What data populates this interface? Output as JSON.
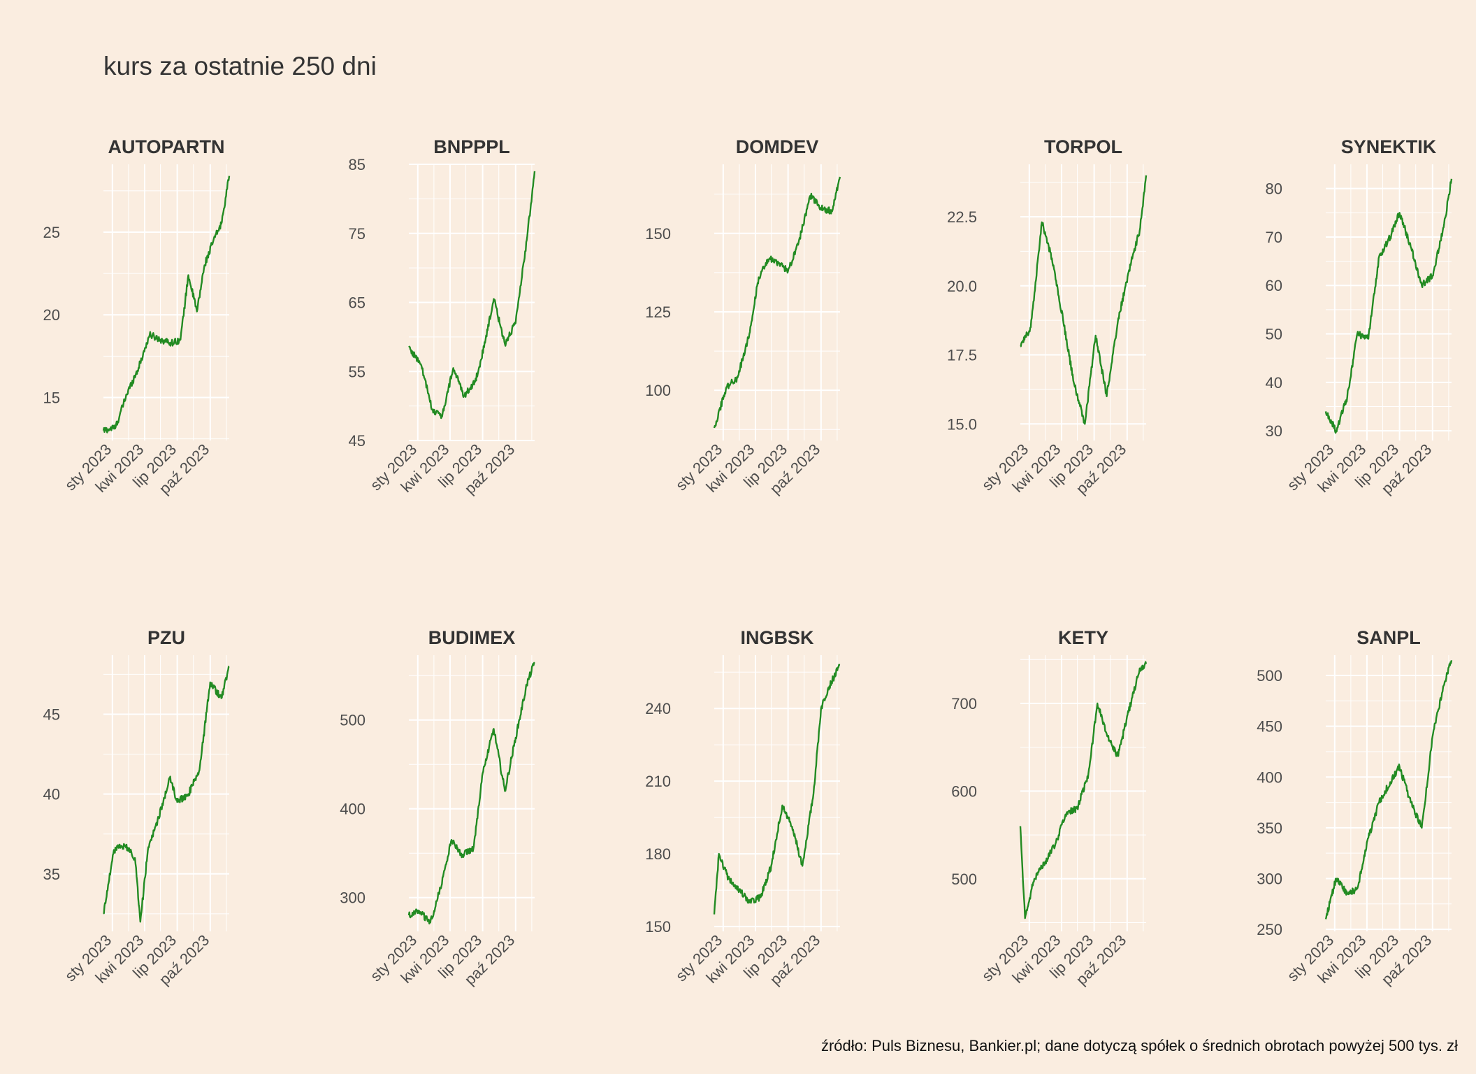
{
  "title": "kurs za ostatnie 250 dni",
  "caption": "źródło: Puls Biznesu, Bankier.pl; dane dotyczą spółek o średnich obrotach powyżej 500 tys. zł",
  "colors": {
    "background": "#faede0",
    "line": "#228b22",
    "grid": "#ffffff",
    "text": "#4d4d4d"
  },
  "chart_data": [
    {
      "type": "line",
      "title": "AUTOPARTN",
      "x_ticks": [
        "sty 2023",
        "kwi 2023",
        "lip 2023",
        "paź 2023"
      ],
      "y_ticks": [
        15,
        20,
        25
      ],
      "ylim": [
        12.4,
        29.1
      ],
      "grid": true,
      "x": [
        "2022-12-07",
        "2023-01-10",
        "2023-02-10",
        "2023-03-15",
        "2023-04-15",
        "2023-05-15",
        "2023-06-15",
        "2023-07-10",
        "2023-08-01",
        "2023-08-25",
        "2023-09-15",
        "2023-10-10",
        "2023-11-01",
        "2023-11-23"
      ],
      "values": [
        13.0,
        13.2,
        15.2,
        16.8,
        18.8,
        18.5,
        18.3,
        18.5,
        22.4,
        20.2,
        23.0,
        24.5,
        25.5,
        28.4
      ]
    },
    {
      "type": "line",
      "title": "BNPPPL",
      "x_ticks": [
        "sty 2023",
        "kwi 2023",
        "lip 2023",
        "paź 2023"
      ],
      "y_ticks": [
        45,
        55,
        65,
        75,
        85
      ],
      "ylim": [
        45,
        85
      ],
      "grid": true,
      "x": [
        "2022-12-07",
        "2023-01-10",
        "2023-02-10",
        "2023-03-10",
        "2023-04-10",
        "2023-05-10",
        "2023-06-10",
        "2023-07-05",
        "2023-08-01",
        "2023-09-01",
        "2023-10-01",
        "2023-11-01",
        "2023-11-23"
      ],
      "values": [
        58.5,
        56.0,
        49.5,
        48.5,
        55.5,
        51.5,
        53.5,
        58.5,
        65.5,
        59.0,
        62.0,
        74.0,
        84.0
      ]
    },
    {
      "type": "line",
      "title": "DOMDEV",
      "x_ticks": [
        "sty 2023",
        "kwi 2023",
        "lip 2023",
        "paź 2023"
      ],
      "y_ticks": [
        100,
        125,
        150
      ],
      "ylim": [
        84,
        172
      ],
      "grid": true,
      "x": [
        "2022-12-07",
        "2023-01-10",
        "2023-02-10",
        "2023-03-15",
        "2023-04-10",
        "2023-05-10",
        "2023-06-10",
        "2023-07-01",
        "2023-08-01",
        "2023-09-01",
        "2023-10-01",
        "2023-11-01",
        "2023-11-23"
      ],
      "values": [
        88.0,
        101.0,
        104.0,
        118.0,
        136.0,
        142.0,
        140.0,
        138.0,
        148.0,
        162.0,
        158.0,
        157.0,
        168.0
      ]
    },
    {
      "type": "line",
      "title": "TORPOL",
      "x_ticks": [
        "sty 2023",
        "kwi 2023",
        "lip 2023",
        "paź 2023"
      ],
      "y_ticks": [
        15.0,
        17.5,
        20.0,
        22.5
      ],
      "ylim": [
        14.4,
        24.4
      ],
      "grid": true,
      "x": [
        "2022-12-07",
        "2023-01-05",
        "2023-02-05",
        "2023-03-05",
        "2023-04-05",
        "2023-05-05",
        "2023-06-05",
        "2023-07-05",
        "2023-08-05",
        "2023-09-05",
        "2023-10-05",
        "2023-11-05",
        "2023-11-23"
      ],
      "values": [
        17.8,
        18.5,
        22.3,
        21.0,
        18.8,
        16.5,
        15.0,
        18.2,
        16.0,
        18.7,
        20.5,
        22.0,
        24.0
      ]
    },
    {
      "type": "line",
      "title": "SYNEKTIK",
      "x_ticks": [
        "sty 2023",
        "kwi 2023",
        "lip 2023",
        "paź 2023"
      ],
      "y_ticks": [
        30,
        40,
        50,
        60,
        70,
        80
      ],
      "ylim": [
        28,
        85
      ],
      "grid": true,
      "x": [
        "2022-12-07",
        "2023-01-05",
        "2023-02-05",
        "2023-03-05",
        "2023-04-05",
        "2023-05-05",
        "2023-06-05",
        "2023-07-01",
        "2023-08-01",
        "2023-09-01",
        "2023-10-01",
        "2023-11-01",
        "2023-11-23"
      ],
      "values": [
        34.0,
        30.0,
        37.0,
        50.0,
        49.0,
        66.0,
        70.0,
        75.0,
        68.0,
        60.0,
        62.0,
        72.0,
        82.0
      ]
    },
    {
      "type": "line",
      "title": "PZU",
      "x_ticks": [
        "sty 2023",
        "kwi 2023",
        "lip 2023",
        "paź 2023"
      ],
      "y_ticks": [
        35,
        40,
        45
      ],
      "ylim": [
        31.4,
        48.7
      ],
      "grid": true,
      "x": [
        "2022-12-07",
        "2023-01-05",
        "2023-02-05",
        "2023-03-05",
        "2023-03-20",
        "2023-04-10",
        "2023-05-10",
        "2023-06-10",
        "2023-07-01",
        "2023-08-01",
        "2023-09-01",
        "2023-10-01",
        "2023-11-01",
        "2023-11-23"
      ],
      "values": [
        32.5,
        36.5,
        36.8,
        36.0,
        32.0,
        36.5,
        38.5,
        41.0,
        39.5,
        40.0,
        41.5,
        47.0,
        46.0,
        48.0
      ]
    },
    {
      "type": "line",
      "title": "BUDIMEX",
      "x_ticks": [
        "sty 2023",
        "kwi 2023",
        "lip 2023",
        "paź 2023"
      ],
      "y_ticks": [
        300,
        400,
        500
      ],
      "ylim": [
        262,
        573
      ],
      "grid": true,
      "x": [
        "2022-12-07",
        "2023-01-05",
        "2023-02-05",
        "2023-03-05",
        "2023-04-05",
        "2023-05-05",
        "2023-06-05",
        "2023-07-01",
        "2023-08-01",
        "2023-09-01",
        "2023-10-01",
        "2023-11-01",
        "2023-11-23"
      ],
      "values": [
        280,
        285,
        272,
        310,
        365,
        348,
        355,
        440,
        490,
        420,
        480,
        540,
        565
      ]
    },
    {
      "type": "line",
      "title": "INGBSK",
      "x_ticks": [
        "sty 2023",
        "kwi 2023",
        "lip 2023",
        "paź 2023"
      ],
      "y_ticks": [
        150,
        180,
        210,
        240
      ],
      "ylim": [
        148,
        262
      ],
      "grid": true,
      "x": [
        "2022-12-07",
        "2022-12-20",
        "2023-01-15",
        "2023-02-15",
        "2023-03-15",
        "2023-04-15",
        "2023-05-15",
        "2023-06-15",
        "2023-07-15",
        "2023-08-10",
        "2023-09-10",
        "2023-10-01",
        "2023-10-20",
        "2023-11-23"
      ],
      "values": [
        155,
        180,
        170,
        165,
        160,
        162,
        175,
        200,
        190,
        175,
        205,
        240,
        248,
        258
      ]
    },
    {
      "type": "line",
      "title": "KETY",
      "x_ticks": [
        "sty 2023",
        "kwi 2023",
        "lip 2023",
        "paź 2023"
      ],
      "y_ticks": [
        500,
        600,
        700
      ],
      "ylim": [
        440,
        755
      ],
      "grid": true,
      "x": [
        "2022-12-07",
        "2022-12-20",
        "2023-01-15",
        "2023-02-15",
        "2023-03-15",
        "2023-04-15",
        "2023-05-15",
        "2023-06-15",
        "2023-07-10",
        "2023-08-05",
        "2023-09-05",
        "2023-10-05",
        "2023-11-05",
        "2023-11-23"
      ],
      "values": [
        560,
        455,
        500,
        520,
        540,
        575,
        580,
        620,
        700,
        665,
        640,
        690,
        740,
        745
      ]
    },
    {
      "type": "line",
      "title": "SANPL",
      "x_ticks": [
        "sty 2023",
        "kwi 2023",
        "lip 2023",
        "paź 2023"
      ],
      "y_ticks": [
        250,
        300,
        350,
        400,
        450,
        500
      ],
      "ylim": [
        248,
        520
      ],
      "grid": true,
      "x": [
        "2022-12-07",
        "2023-01-05",
        "2023-02-05",
        "2023-03-05",
        "2023-04-05",
        "2023-05-05",
        "2023-06-05",
        "2023-07-01",
        "2023-08-01",
        "2023-09-01",
        "2023-10-01",
        "2023-11-01",
        "2023-11-23"
      ],
      "values": [
        260,
        300,
        285,
        290,
        340,
        375,
        395,
        410,
        375,
        350,
        440,
        490,
        515
      ]
    }
  ]
}
